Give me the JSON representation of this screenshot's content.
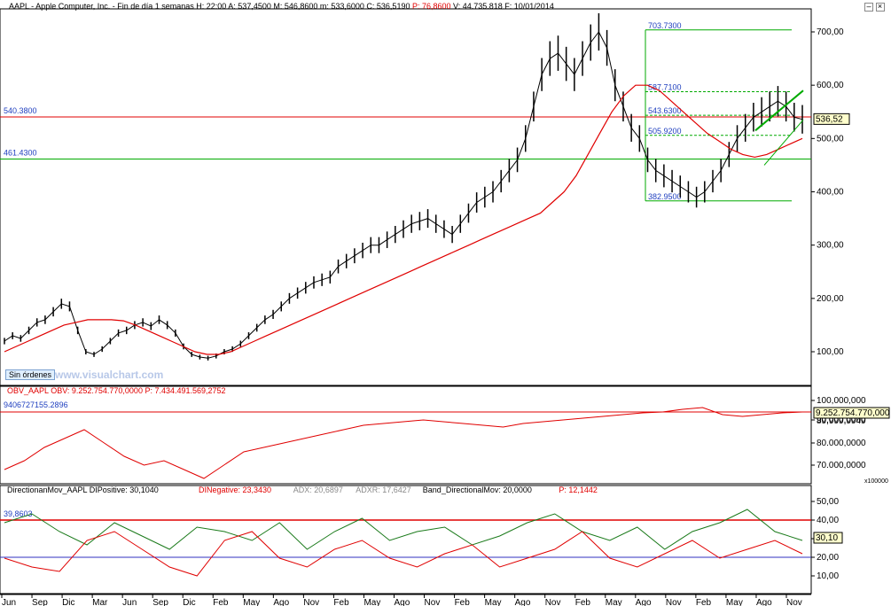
{
  "colors": {
    "price": "#000000",
    "ma": "#e00000",
    "green": "#00aa00",
    "blue": "#1f3fbf",
    "pink": "#ff6d80",
    "axis_bg": "#ffffff",
    "label_bg": "#ffffcc"
  },
  "header": {
    "text": "AAPL - Apple Computer, Inc. - Fin de día 1 semanas H: 22:00  A: 537,4500  M: 546,8600  m: 533,6000  C: 536,5190",
    "p": "P: 76,8600",
    "v": "V: 44.735.818",
    "date": "F: 10/01/2014"
  },
  "main_panel": {
    "watermark": "www.visualchart.com",
    "orders_button": "Sin órdenes",
    "levels": [
      {
        "label": "703.7300",
        "value": 703.73
      },
      {
        "label": "587.7100",
        "value": 587.71
      },
      {
        "label": "543.6300",
        "value": 543.63
      },
      {
        "label": "505.9200",
        "value": 505.92
      },
      {
        "label": "382.9500",
        "value": 382.95
      }
    ],
    "hlines": [
      {
        "label": "540.3800",
        "value": 540.38
      },
      {
        "label": "461.4300",
        "value": 461.43
      }
    ],
    "last_price": "536,52",
    "y_ticks": [
      "700,00",
      "600,00",
      "500,00",
      "400,00",
      "300,00",
      "200,00",
      "100,00"
    ]
  },
  "obv_panel": {
    "title": "OBV_AAPL  OBV: 9.252.754.770,0000  P: 7.434.491.569,2752",
    "hline_label": "9406727155.2896",
    "last_value": "9.252.754.770,000",
    "y_ticks": [
      "100,000,000",
      "90.000,0000",
      "80.000,0000",
      "70.000,0000",
      "89,999,9949"
    ],
    "scale_note": "x100000"
  },
  "dmi_panel": {
    "title_parts": [
      {
        "text": "DirectionanMov_AAPL  DIPositive: 30,1040",
        "color": "#000000"
      },
      {
        "text": "DINegative: 23,3430",
        "color": "#e00000"
      },
      {
        "text": "ADX: 20,6897",
        "color": "#888888"
      },
      {
        "text": "ADXR: 17,6427",
        "color": "#888888"
      },
      {
        "text": "Band_DirectionalMov: 20,0000",
        "color": "#000000"
      },
      {
        "text": "P: 12,1442",
        "color": "#e00000"
      }
    ],
    "hline_label": "39,8603",
    "last_value": "30,10",
    "y_ticks": [
      "50,00",
      "40,00",
      "30,00",
      "20,00",
      "10,00"
    ]
  },
  "x_axis": [
    "Jun",
    "Sep",
    "Dic",
    "Mar",
    "Jun",
    "Sep",
    "Dic",
    "Feb",
    "May",
    "Ago",
    "Nov",
    "Feb",
    "May",
    "Ago",
    "Nov",
    "Feb",
    "May",
    "Ago",
    "Nov",
    "Feb",
    "May",
    "Ago",
    "Nov",
    "Feb",
    "May",
    "Ago",
    "Nov"
  ],
  "chart_data": {
    "type": "line",
    "series": [
      {
        "name": "AAPL",
        "x_range": [
          "Jun 2008",
          "Oct 2014"
        ],
        "values": [
          120,
          130,
          125,
          140,
          155,
          160,
          175,
          190,
          185,
          140,
          100,
          95,
          105,
          120,
          135,
          140,
          150,
          155,
          148,
          160,
          150,
          135,
          110,
          95,
          90,
          88,
          92,
          100,
          105,
          115,
          130,
          145,
          160,
          170,
          185,
          200,
          210,
          220,
          230,
          235,
          240,
          260,
          270,
          280,
          290,
          300,
          300,
          310,
          320,
          330,
          340,
          345,
          350,
          340,
          330,
          320,
          340,
          360,
          380,
          390,
          400,
          420,
          440,
          460,
          500,
          560,
          620,
          650,
          660,
          640,
          620,
          650,
          680,
          700,
          670,
          600,
          560,
          520,
          500,
          460,
          440,
          430,
          420,
          410,
          400,
          390,
          400,
          420,
          440,
          470,
          500,
          520,
          540,
          550,
          560,
          570,
          560,
          540,
          536
        ]
      },
      {
        "name": "MA",
        "values": [
          100,
          110,
          120,
          130,
          140,
          150,
          155,
          160,
          160,
          160,
          158,
          150,
          140,
          130,
          120,
          110,
          100,
          95,
          95,
          100,
          110,
          120,
          130,
          140,
          150,
          160,
          170,
          180,
          190,
          200,
          210,
          220,
          230,
          240,
          250,
          260,
          270,
          280,
          290,
          300,
          310,
          320,
          330,
          340,
          350,
          360,
          380,
          400,
          430,
          470,
          510,
          550,
          580,
          600,
          600,
          590,
          570,
          550,
          530,
          510,
          495,
          480,
          470,
          465,
          470,
          480,
          490,
          500
        ]
      }
    ]
  }
}
